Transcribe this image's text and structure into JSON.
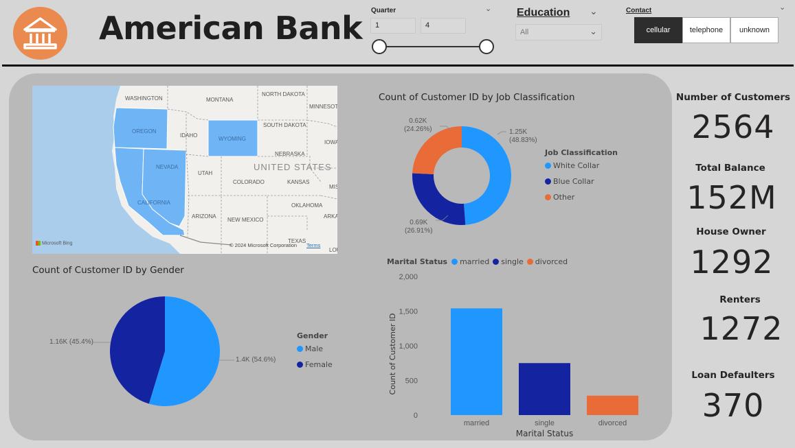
{
  "header": {
    "title": "American Bank",
    "logo_icon": "bank-icon",
    "logo_color": "#eb8a4e"
  },
  "filters": {
    "quarter": {
      "title": "Quarter",
      "from": "1",
      "to": "4"
    },
    "education": {
      "title": "Education",
      "selected": "All"
    },
    "contact": {
      "title": "Contact",
      "options": [
        {
          "label": "cellular",
          "active": true
        },
        {
          "label": "telephone",
          "active": false
        },
        {
          "label": "unknown",
          "active": false
        }
      ]
    }
  },
  "map": {
    "country": "UNITED STATES",
    "states": [
      "WASHINGTON",
      "MONTANA",
      "NORTH DAKOTA",
      "MINNESOTA",
      "OREGON",
      "IDAHO",
      "WYOMING",
      "SOUTH DAKOTA",
      "IOWA",
      "NEVADA",
      "NEBRASKA",
      "UTAH",
      "COLORADO",
      "KANSAS",
      "MIS",
      "CALIFORNIA",
      "OKLAHOMA",
      "ARIZONA",
      "NEW MEXICO",
      "ARKA",
      "TEXAS",
      "LOU"
    ],
    "highlighted": [
      "OREGON",
      "NEVADA",
      "CALIFORNIA",
      "WYOMING"
    ],
    "attribution": "© 2024 Microsoft Corporation",
    "terms": "Terms",
    "brand": "Microsoft Bing",
    "highlight_color": "#6fb4f4"
  },
  "kpis": [
    {
      "label": "Number of Customers",
      "value": "2564"
    },
    {
      "label": "Total Balance",
      "value": "152M"
    },
    {
      "label": "House Owner",
      "value": "1292"
    },
    {
      "label": "Renters",
      "value": "1272"
    },
    {
      "label": "Loan Defaulters",
      "value": "370"
    }
  ],
  "colors": {
    "light_blue": "#1f97ff",
    "dark_blue": "#1423a0",
    "orange": "#e96c38"
  },
  "chart_data": [
    {
      "type": "pie",
      "subtype": "donut",
      "title": "Count of Customer ID by Job Classification",
      "legend_title": "Job Classification",
      "legend_position": "right",
      "categories": [
        "White Collar",
        "Blue Collar",
        "Other"
      ],
      "values": [
        1250,
        690,
        620
      ],
      "percent": [
        48.83,
        26.91,
        24.26
      ],
      "labels": [
        "1.25K",
        "0.69K",
        "0.62K"
      ],
      "pct_labels": [
        "(48.83%)",
        "(26.91%)",
        "(24.26%)"
      ],
      "colors": [
        "#1f97ff",
        "#1423a0",
        "#e96c38"
      ]
    },
    {
      "type": "pie",
      "title": "Count of Customer ID by Gender",
      "legend_title": "Gender",
      "legend_position": "right",
      "categories": [
        "Male",
        "Female"
      ],
      "values": [
        1400,
        1160
      ],
      "percent": [
        54.6,
        45.4
      ],
      "labels": [
        "1.4K (54.6%)",
        "1.16K (45.4%)"
      ],
      "colors": [
        "#1f97ff",
        "#1423a0"
      ]
    },
    {
      "type": "bar",
      "title": "",
      "legend_title": "Marital Status",
      "legend_position": "top-left",
      "categories": [
        "married",
        "single",
        "divorced"
      ],
      "values": [
        1540,
        750,
        280
      ],
      "colors": [
        "#1f97ff",
        "#1423a0",
        "#e96c38"
      ],
      "xlabel": "Marital Status",
      "ylabel": "Count of Customer ID",
      "ylim": [
        0,
        2000
      ],
      "yticks": [
        0,
        500,
        1000,
        1500,
        2000
      ],
      "ytick_labels": [
        "0",
        "500",
        "1,000",
        "1,500",
        "2,000"
      ],
      "grid": false
    }
  ]
}
